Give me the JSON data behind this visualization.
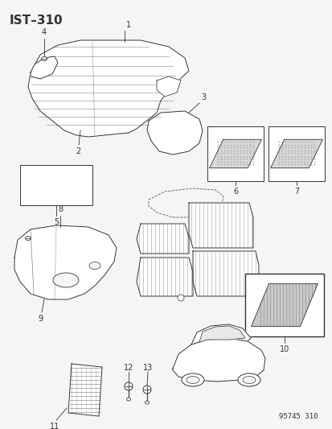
{
  "title": "IST–310",
  "background_color": "#f5f5f5",
  "watermark": "95745 310",
  "line_color": "#333333",
  "gray": "#777777"
}
